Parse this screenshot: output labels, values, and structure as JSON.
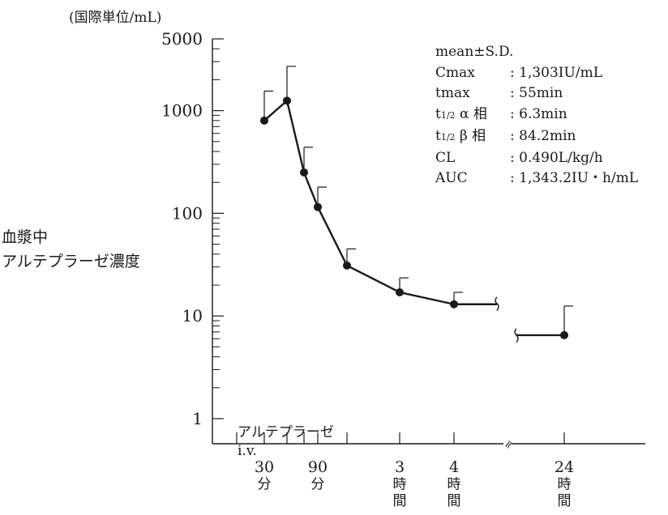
{
  "chart_data": {
    "type": "line",
    "ylabel_unit": "(国際単位/mL)",
    "ylabel_lines": [
      "血漿中",
      "アルテプラーゼ濃度"
    ],
    "yscale": "log",
    "ylim": [
      1,
      5000
    ],
    "yticks": [
      1,
      10,
      100,
      1000,
      5000
    ],
    "ytick_labels": [
      "1",
      "10",
      "100",
      "1000",
      "5000"
    ],
    "xticks": [
      {
        "minutes": 30,
        "label_lines": [
          "30",
          "分"
        ]
      },
      {
        "minutes": 90,
        "label_lines": [
          "90",
          "分"
        ]
      },
      {
        "minutes": 180,
        "label_lines": [
          "3",
          "時",
          "間"
        ]
      },
      {
        "minutes": 240,
        "label_lines": [
          "4",
          "時",
          "間"
        ]
      },
      {
        "minutes": 1440,
        "label_lines": [
          "24",
          "時",
          "間"
        ]
      }
    ],
    "x_break_symbol": "≈",
    "annotation_lines": [
      "アルテプラーゼ",
      "i.v."
    ],
    "series": [
      {
        "x_minutes": [
          30,
          60,
          75,
          90,
          120,
          180,
          240,
          1440
        ],
        "mean": [
          800,
          1250,
          250,
          115,
          31,
          17,
          13,
          6.5
        ],
        "upper_sd": [
          1550,
          2700,
          440,
          180,
          45,
          23.5,
          17,
          12.5
        ]
      }
    ],
    "plateau_to_break": 13,
    "plateau_after_break": 6.5,
    "stats_header": "mean±S.D.",
    "stats": [
      {
        "label": "Cmax",
        "value": ": 1,303IU/mL"
      },
      {
        "label": "tmax",
        "value": ": 55min"
      },
      {
        "label_main": "t",
        "label_sub": "1/2",
        "label_greek": " α 相",
        "value": ": 6.3min"
      },
      {
        "label_main": "t",
        "label_sub": "1/2",
        "label_greek": " β 相",
        "value": ": 84.2min"
      },
      {
        "label": "CL",
        "value": ": 0.490L/kg/h"
      },
      {
        "label": "AUC",
        "value": ": 1,343.2IU・h/mL"
      }
    ]
  }
}
